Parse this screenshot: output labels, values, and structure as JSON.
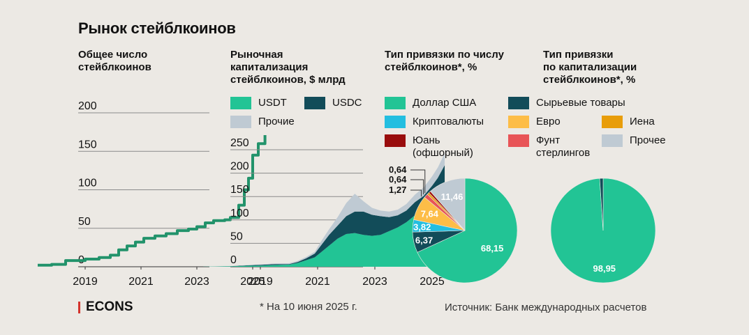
{
  "header": {
    "title": "Рынок стейблкоинов"
  },
  "panels": {
    "count": {
      "title": "Общее число\nстейблкоинов"
    },
    "cap": {
      "title": "Рыночная\nкапитализация\nстейблкоинов, $ млрд"
    },
    "pie_count": {
      "title": "Тип привязки по числу\nстейблкоинов*, %"
    },
    "pie_cap": {
      "title": "Тип привязки\nпо капитализации\nстейблкоинов*, %"
    }
  },
  "legends": {
    "cap": [
      {
        "label": "USDT",
        "color": "#22c495"
      },
      {
        "label": "USDC",
        "color": "#124c59"
      },
      {
        "label": "Прочие",
        "color": "#bfcad3"
      }
    ],
    "peg": [
      {
        "label": "Доллар США",
        "color": "#22c495"
      },
      {
        "label": "Сырьевые товары",
        "color": "#124c59"
      },
      {
        "label": "Криптовалюты",
        "color": "#23bee0"
      },
      {
        "label": "Евро",
        "color": "#fdbd47"
      },
      {
        "label": "Иена",
        "color": "#e89d0a"
      },
      {
        "label": "Юань\n(офшорный)",
        "color": "#990d0d"
      },
      {
        "label": "Фунт\nстерлингов",
        "color": "#e85457"
      },
      {
        "label": "Прочее",
        "color": "#bfcad3"
      }
    ]
  },
  "chart_data": [
    {
      "type": "line",
      "title": "Общее число стейблкоинов",
      "x": [
        2017.3,
        2017.8,
        2018.3,
        2018.6,
        2019.0,
        2019.5,
        2019.9,
        2020.2,
        2020.5,
        2020.8,
        2021.1,
        2021.5,
        2021.9,
        2022.3,
        2022.7,
        2023.0,
        2023.3,
        2023.6,
        2024.0,
        2024.2,
        2024.5,
        2024.7,
        2024.85,
        2025.0,
        2025.2,
        2025.44
      ],
      "y": [
        2,
        3,
        8,
        8,
        10,
        12,
        15,
        22,
        27,
        32,
        37,
        40,
        43,
        47,
        49,
        52,
        57,
        60,
        61,
        64,
        80,
        100,
        115,
        145,
        160,
        171
      ],
      "xticks": [
        "2019",
        "2021",
        "2023",
        "2025"
      ],
      "yticks": [
        0,
        50,
        100,
        150,
        200
      ],
      "xlim": [
        2017.0,
        2025.7
      ],
      "ylim": [
        0,
        200
      ],
      "color": "#22936b"
    },
    {
      "type": "area",
      "title": "Рыночная капитализация стейблкоинов, $ млрд",
      "x": [
        2017.0,
        2018.0,
        2018.5,
        2019.0,
        2019.5,
        2020.0,
        2020.3,
        2020.6,
        2020.9,
        2021.1,
        2021.4,
        2021.7,
        2022.0,
        2022.3,
        2022.6,
        2022.9,
        2023.2,
        2023.5,
        2023.8,
        2024.1,
        2024.4,
        2024.7,
        2025.0,
        2025.2,
        2025.44
      ],
      "series": [
        {
          "name": "USDT",
          "values": [
            0.1,
            1,
            2,
            2.5,
            3.5,
            4.5,
            8,
            14,
            20,
            30,
            45,
            60,
            70,
            72,
            68,
            66,
            68,
            76,
            84,
            95,
            110,
            118,
            135,
            145,
            155
          ]
        },
        {
          "name": "USDC",
          "values": [
            0,
            0.3,
            1,
            1.5,
            2,
            1,
            2,
            4,
            8,
            14,
            23,
            28,
            38,
            46,
            50,
            45,
            40,
            30,
            26,
            25,
            28,
            33,
            38,
            45,
            62
          ]
        },
        {
          "name": "Прочие",
          "values": [
            0.1,
            0.2,
            0.5,
            1,
            1.5,
            2,
            2.5,
            3,
            4,
            8,
            12,
            18,
            28,
            38,
            22,
            15,
            12,
            12,
            12,
            14,
            16,
            18,
            20,
            22,
            25
          ]
        }
      ],
      "xticks": [
        "2019",
        "2021",
        "2023",
        "2025"
      ],
      "yticks": [
        0,
        50,
        100,
        150,
        200,
        250
      ],
      "xlim": [
        2017.0,
        2025.7
      ],
      "ylim": [
        0,
        250
      ]
    },
    {
      "type": "pie",
      "title": "Тип привязки по числу стейблкоинов*, %",
      "labels": [
        "Доллар США",
        "Сырьевые товары",
        "Криптовалюты",
        "Евро",
        "Фунт стерлингов",
        "Иена",
        "Юань (офшорный)",
        "Прочее"
      ],
      "values": [
        68.15,
        6.37,
        3.82,
        7.64,
        1.27,
        0.64,
        0.64,
        11.46
      ],
      "value_labels": [
        "68,15",
        "6,37",
        "3,82",
        "7,64",
        "1,27",
        "0,64",
        "0,64",
        "11,46"
      ],
      "colors": [
        "#22c495",
        "#124c59",
        "#23bee0",
        "#fdbd47",
        "#e85457",
        "#e89d0a",
        "#990d0d",
        "#bfcad3"
      ]
    },
    {
      "type": "pie",
      "title": "Тип привязки по капитализации стейблкоинов*, %",
      "labels": [
        "Доллар США",
        "Сырьевые товары"
      ],
      "values": [
        98.95,
        1.05
      ],
      "value_labels": [
        "98,95",
        ""
      ],
      "colors": [
        "#22c495",
        "#124c59"
      ]
    }
  ],
  "footer": {
    "note": "* На 10 июня 2025 г.",
    "source": "Источник: Банк международных расчетов",
    "logo": "ECONS"
  }
}
